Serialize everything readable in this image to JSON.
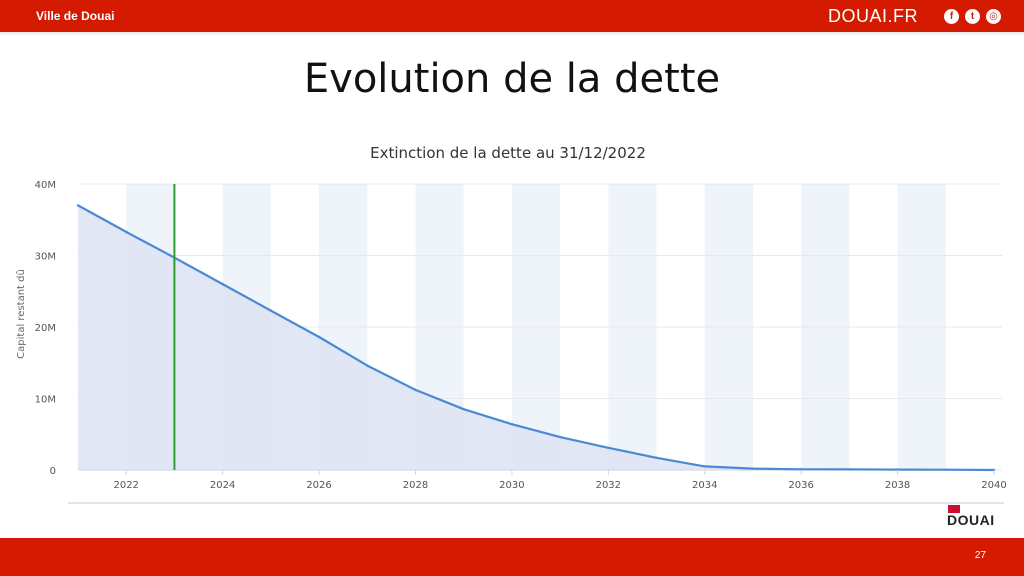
{
  "header": {
    "city_name": "Ville de Douai",
    "site_name": "DOUAI.FR",
    "social_icons": [
      "facebook-icon",
      "twitter-icon",
      "instagram-icon"
    ]
  },
  "slide": {
    "title": "Evolution de la dette",
    "page_number": "27"
  },
  "logo": {
    "text": "DOUAI"
  },
  "colors": {
    "brand_red": "#d41a00",
    "line": "#4a8ad4",
    "area": "#dde3f3",
    "marker": "#2ca02c",
    "band": "#eef4f9"
  },
  "chart_data": {
    "type": "area",
    "title": "Extinction de la dette au 31/12/2022",
    "xlabel": "",
    "ylabel": "Capital restant dû",
    "xlim": [
      2021,
      2040
    ],
    "ylim": [
      0,
      40000000
    ],
    "x_ticks": [
      2022,
      2024,
      2026,
      2028,
      2030,
      2032,
      2034,
      2036,
      2038,
      2040
    ],
    "x_tick_labels": [
      "2022",
      "2024",
      "2026",
      "2028",
      "2030",
      "2032",
      "2034",
      "2036",
      "2038",
      "2040"
    ],
    "y_ticks": [
      0,
      10000000,
      20000000,
      30000000,
      40000000
    ],
    "y_tick_labels": [
      "0",
      "10M",
      "20M",
      "30M",
      "40M"
    ],
    "grid": true,
    "alternating_year_bands": true,
    "marker_line_x": 2023,
    "series": [
      {
        "x": [
          2021,
          2022,
          2023,
          2024,
          2025,
          2026,
          2027,
          2028,
          2029,
          2030,
          2031,
          2032,
          2033,
          2034,
          2035,
          2036,
          2037,
          2038,
          2039,
          2040
        ],
        "values": [
          37000000,
          33300000,
          29700000,
          26000000,
          22300000,
          18600000,
          14600000,
          11200000,
          8500000,
          6400000,
          4600000,
          3100000,
          1700000,
          500000,
          200000,
          100000,
          80000,
          60000,
          40000,
          0
        ]
      }
    ]
  }
}
